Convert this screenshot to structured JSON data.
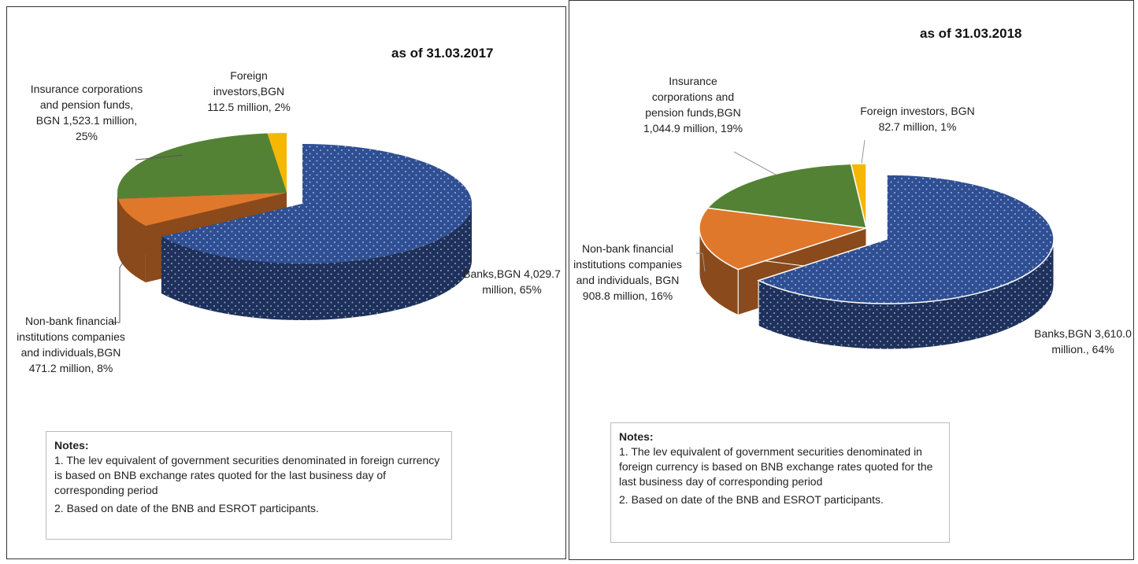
{
  "chart_data": [
    {
      "type": "pie3d",
      "title": "as of 31.03.2017",
      "values": [
        4029.7,
        471.2,
        1523.1,
        112.5
      ],
      "value_labels": [
        "Banks,BGN 4,029.7 million, 65%",
        "Non-bank financial institutions companies and individuals,BGN 471.2 million, 8%",
        "Insurance corporations and pension funds, BGN 1,523.1 million, 25%",
        "Foreign investors,BGN 112.5 million, 2%"
      ],
      "colors": [
        "#2f4f94",
        "#e0782c",
        "#548235",
        "#f5b700"
      ],
      "notes": {
        "title": "Notes:",
        "items": [
          "1. The lev equivalent of government securities denominated in foreign currency is based on BNB exchange rates quoted for the last business day of corresponding period",
          "2. Based on date of the BNB and ESROT participants."
        ]
      }
    },
    {
      "type": "pie3d",
      "title": "as of 31.03.2018",
      "values": [
        3610.0,
        908.8,
        1044.9,
        82.7
      ],
      "value_labels": [
        "Banks,BGN 3,610.0 million., 64%",
        "Non-bank financial institutions companies and individuals, BGN 908.8 million, 16%",
        "Insurance corporations and pension funds,BGN 1,044.9 million, 19%",
        "Foreign investors, BGN 82.7 million, 1%"
      ],
      "colors": [
        "#2f4f94",
        "#e0782c",
        "#548235",
        "#f5b700"
      ],
      "notes": {
        "title": "Notes:",
        "items": [
          "1. The lev equivalent of government securities denominated in foreign currency is based on BNB exchange rates quoted for the last business day of corresponding period",
          "2. Based on date of the BNB and ESROT participants."
        ]
      }
    }
  ]
}
